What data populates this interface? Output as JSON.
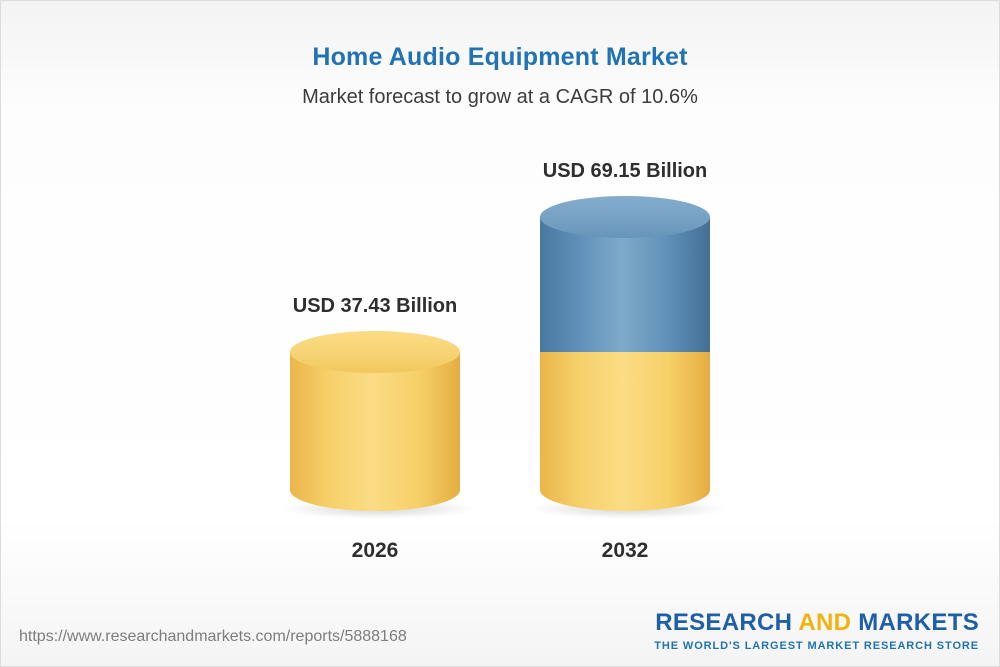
{
  "header": {
    "title": "Home Audio Equipment Market",
    "subtitle": "Market forecast to grow at a CAGR of 10.6%"
  },
  "chart_data": {
    "type": "bar",
    "title": "Home Audio Equipment Market",
    "subtitle": "Market forecast to grow at a CAGR of 10.6%",
    "unit": "USD Billion",
    "cagr_percent": 10.6,
    "categories": [
      "2026",
      "2032"
    ],
    "values": [
      37.43,
      69.15
    ],
    "value_labels": [
      "USD 37.43 Billion",
      "USD 69.15 Billion"
    ],
    "series_note": "2032 bar shown stacked: base segment equals 2026 value, growth segment is the increase to 69.15",
    "colors": {
      "base_segment": "#f6cf68",
      "growth_segment": "#5f8fb8",
      "title_blue": "#2173b4"
    },
    "legend": "none",
    "grid": false,
    "bar_shape": "cylinder"
  },
  "footer": {
    "url": "https://www.researchandmarkets.com/reports/5888168",
    "logo": {
      "word1": "RESEARCH",
      "word2": "AND",
      "word3": "MARKETS",
      "tagline": "THE WORLD'S LARGEST MARKET RESEARCH STORE"
    }
  }
}
